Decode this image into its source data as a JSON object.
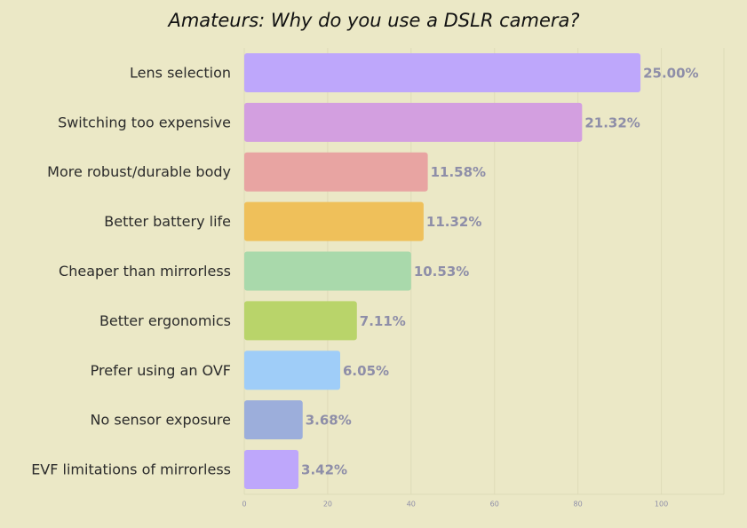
{
  "chart_data": {
    "type": "barh",
    "title": "Amateurs: Why do you use a DSLR camera?",
    "categories": [
      "Lens selection",
      "Switching too expensive",
      "More robust/durable body",
      "Better battery life",
      "Cheaper than mirrorless",
      "Better ergonomics",
      "Prefer using an OVF",
      "No sensor exposure",
      "EVF limitations of mirrorless"
    ],
    "values": [
      95,
      81,
      44,
      43,
      40,
      27,
      23,
      14,
      13
    ],
    "value_labels": [
      "25.00%",
      "21.32%",
      "11.58%",
      "11.32%",
      "10.53%",
      "7.11%",
      "6.05%",
      "3.68%",
      "3.42%"
    ],
    "colors": [
      "#bea7fb",
      "#d39fe0",
      "#e8a4a2",
      "#efc05a",
      "#a9d9ab",
      "#b9d46a",
      "#9fcdf8",
      "#9caedb",
      "#bea7fb"
    ],
    "xlim": [
      0,
      115
    ],
    "xticks": [
      0,
      20,
      40,
      60,
      80,
      100
    ],
    "grid": true
  }
}
